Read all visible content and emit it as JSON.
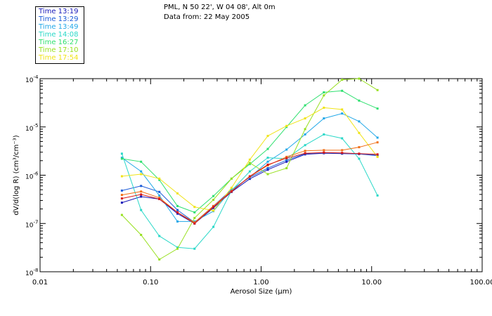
{
  "header": {
    "location": "PML, N 50 22', W 04 08', Alt 0m",
    "date_line": "Data from: 22 May 2005"
  },
  "legend": [
    {
      "label": "Time 13:19",
      "color": "#1818b8"
    },
    {
      "label": "Time 13:29",
      "color": "#1a5ad8"
    },
    {
      "label": "Time 13:49",
      "color": "#22a8e8"
    },
    {
      "label": "Time 14:08",
      "color": "#2ad8c8"
    },
    {
      "label": "Time 16:27",
      "color": "#30e070"
    },
    {
      "label": "Time 17:10",
      "color": "#98e020"
    },
    {
      "label": "Time 17:54",
      "color": "#f0e418"
    }
  ],
  "chart_data": {
    "type": "line",
    "xscale": "log",
    "yscale": "log",
    "xlim": [
      0.01,
      100
    ],
    "ylim": [
      1e-08,
      0.0001
    ],
    "xlabel": "Aerosol Size (μm)",
    "ylabel": "dV/d(log R) (cm³/cm⁻³)",
    "x_ticks": [
      "0.01",
      "0.10",
      "1.00",
      "10.00",
      "100.00"
    ],
    "y_ticks": [
      {
        "base": "10",
        "exp": "-8"
      },
      {
        "base": "10",
        "exp": "-7"
      },
      {
        "base": "10",
        "exp": "-6"
      },
      {
        "base": "10",
        "exp": "-5"
      },
      {
        "base": "10",
        "exp": "-4"
      }
    ],
    "x": [
      0.055,
      0.082,
      0.12,
      0.175,
      0.25,
      0.37,
      0.54,
      0.79,
      1.15,
      1.7,
      2.5,
      3.7,
      5.4,
      7.7,
      11.3
    ],
    "series": [
      {
        "name": "Time 13:19",
        "color": "#1818b8",
        "values": [
          2.7e-07,
          3.6e-07,
          3.2e-07,
          1.6e-07,
          1e-07,
          2.1e-07,
          4.5e-07,
          8.4e-07,
          1.3e-06,
          1.9e-06,
          2.7e-06,
          2.85e-06,
          2.8e-06,
          2.75e-06,
          2.55e-06
        ]
      },
      {
        "name": "Time 13:29",
        "color": "#1a5ad8",
        "values": [
          4.8e-07,
          6e-07,
          4.5e-07,
          1.9e-07,
          1.05e-07,
          2.3e-07,
          5e-07,
          9e-07,
          1.4e-06,
          2.05e-06,
          2.8e-06,
          2.9e-06,
          2.85e-06,
          2.75e-06,
          2.6e-06
        ]
      },
      {
        "name": "Time 13:49",
        "color": "#22a8e8",
        "values": [
          2.3e-06,
          1.2e-06,
          3.8e-07,
          1.1e-07,
          1.1e-07,
          1.8e-07,
          5e-07,
          9e-07,
          1.9e-06,
          3.4e-06,
          7e-06,
          1.5e-05,
          1.9e-05,
          1.3e-05,
          6e-06
        ]
      },
      {
        "name": "Time 14:08",
        "color": "#2ad8c8",
        "values": [
          2.8e-06,
          1.9e-07,
          5.5e-08,
          3.2e-08,
          3e-08,
          8.5e-08,
          4.8e-07,
          1.2e-06,
          2.3e-06,
          2.2e-06,
          4.2e-06,
          7e-06,
          5.8e-06,
          2.2e-06,
          3.8e-07
        ]
      },
      {
        "name": "Time 16:27",
        "color": "#30e070",
        "values": [
          2.2e-06,
          1.9e-06,
          8e-07,
          2.3e-07,
          1.7e-07,
          3.7e-07,
          8.5e-07,
          1.7e-06,
          3.5e-06,
          1e-05,
          2.8e-05,
          5.2e-05,
          5.6e-05,
          3.5e-05,
          2.4e-05
        ]
      },
      {
        "name": "Time 17:10",
        "color": "#98e020",
        "values": [
          1.5e-07,
          5.8e-08,
          1.8e-08,
          3e-08,
          1.3e-07,
          3.1e-07,
          8.5e-07,
          1.8e-06,
          1.05e-06,
          1.4e-06,
          9e-06,
          4.5e-05,
          9.5e-05,
          0.0001,
          5.8e-05
        ]
      },
      {
        "name": "Time 17:54",
        "color": "#f0e418",
        "values": [
          9.5e-07,
          1.05e-06,
          8.5e-07,
          4.2e-07,
          2.2e-07,
          1.85e-07,
          5.5e-07,
          2.1e-06,
          6.5e-06,
          1.05e-05,
          1.5e-05,
          2.5e-05,
          2.3e-05,
          7.5e-06,
          2.4e-06
        ]
      },
      {
        "name": "",
        "color": "#f07018",
        "values": [
          3.9e-07,
          4.6e-07,
          3.4e-07,
          1.7e-07,
          1.05e-07,
          2.3e-07,
          4.7e-07,
          9.3e-07,
          1.6e-06,
          2.4e-06,
          3.2e-06,
          3.3e-06,
          3.3e-06,
          3.8e-06,
          4.8e-06
        ]
      },
      {
        "name": "",
        "color": "#d81818",
        "values": [
          3.3e-07,
          4e-07,
          3.2e-07,
          1.7e-07,
          1e-07,
          2.2e-07,
          4.6e-07,
          9.5e-07,
          1.65e-06,
          2.25e-06,
          2.85e-06,
          2.95e-06,
          2.9e-06,
          2.8e-06,
          2.7e-06
        ]
      }
    ]
  }
}
